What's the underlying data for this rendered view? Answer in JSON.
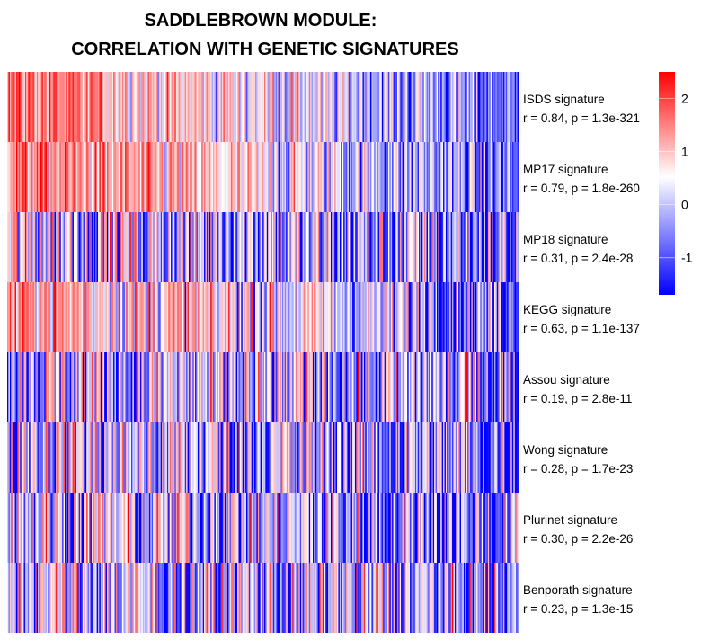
{
  "chart_data": {
    "type": "heatmap",
    "title_lines": [
      "SADDLEBROWN MODULE:",
      "CORRELATION WITH GENETIC SIGNATURES"
    ],
    "rows": [
      {
        "name": "ISDS signature",
        "stats": "r = 0.84, p = 1.3e-321",
        "r": 0.84
      },
      {
        "name": "MP17 signature",
        "stats": "r = 0.79, p = 1.8e-260",
        "r": 0.79
      },
      {
        "name": "MP18 signature",
        "stats": "r = 0.31, p = 2.4e-28",
        "r": 0.31
      },
      {
        "name": "KEGG signature",
        "stats": "r = 0.63, p = 1.1e-137",
        "r": 0.63
      },
      {
        "name": "Assou signature",
        "stats": "r = 0.19, p = 2.8e-11",
        "r": 0.19
      },
      {
        "name": "Wong signature",
        "stats": "r = 0.28, p = 1.7e-23",
        "r": 0.28
      },
      {
        "name": "Plurinet signature",
        "stats": "r = 0.30, p = 2.2e-26",
        "r": 0.3
      },
      {
        "name": "Benporath signature",
        "stats": "r = 0.23, p = 1.3e-15",
        "r": 0.23
      }
    ],
    "color_scale": {
      "low": "#0000ff",
      "mid": "#ffffff",
      "high": "#ff0000",
      "range": [
        -1.7,
        2.5
      ],
      "ticks": [
        2,
        1,
        0,
        -1
      ],
      "tick_labels": [
        "2",
        "1",
        "0",
        "-1"
      ]
    },
    "samples_shown": 400
  }
}
